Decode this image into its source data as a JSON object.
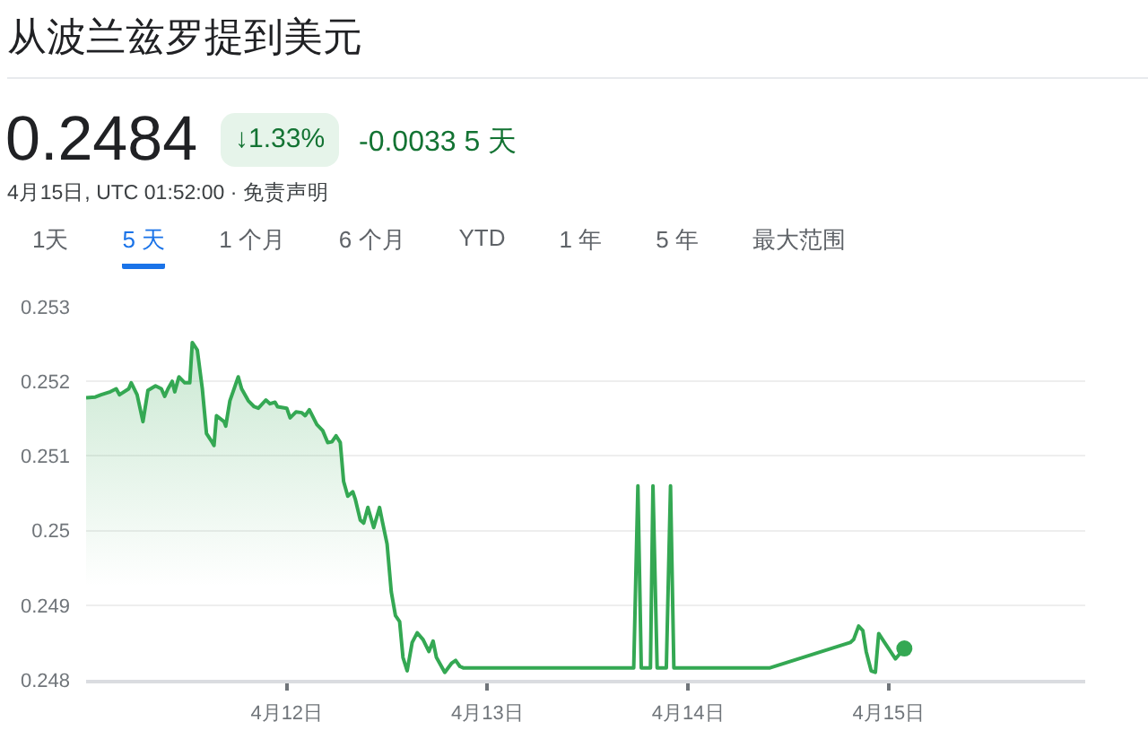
{
  "chart_data": {
    "type": "area",
    "title": "从波兰兹罗提到美元",
    "subtitle": "4月15日, UTC 01:52:00 · 免责声明",
    "annotations": [
      "0.2484",
      "↓1.33%",
      "-0.0033 5 天",
      "1天",
      "5 天",
      "1 个月",
      "6 个月",
      "YTD",
      "1 年",
      "5 年",
      "最大范围"
    ],
    "series": [
      {
        "color": "#34a853",
        "x": [
          "--04-11T00:00",
          "--04-11T01:06",
          "--04-11T01:48",
          "--04-11T02:54",
          "--04-11T03:36",
          "--04-11T04:00",
          "--04-11T05:06",
          "--04-11T05:24",
          "--04-11T06:06",
          "--04-11T06:48",
          "--04-11T07:24",
          "--04-11T08:18",
          "--04-11T09:00",
          "--04-11T09:24",
          "--04-11T09:48",
          "--04-11T10:18",
          "--04-11T10:36",
          "--04-11T11:06",
          "--04-11T11:48",
          "--04-11T12:24",
          "--04-11T12:42",
          "--04-11T13:18",
          "--04-11T13:54",
          "--04-11T14:24",
          "--04-11T15:06",
          "--04-11T15:18",
          "--04-11T15:36",
          "--04-11T16:30",
          "--04-11T16:42",
          "--04-11T17:12",
          "--04-11T18:12",
          "--04-11T18:36",
          "--04-11T19:24",
          "--04-11T20:06",
          "--04-11T20:36",
          "--04-11T21:30",
          "--04-11T22:00",
          "--04-11T22:36",
          "--04-11T22:54",
          "--04-12T00:00",
          "--04-12T00:24",
          "--04-12T01:06",
          "--04-12T01:48",
          "--04-12T02:12",
          "--04-12T02:42",
          "--04-12T03:36",
          "--04-12T04:18",
          "--04-12T04:54",
          "--04-12T05:24",
          "--04-12T05:54",
          "--04-12T06:24",
          "--04-12T06:48",
          "--04-12T07:18",
          "--04-12T07:54",
          "--04-12T08:12",
          "--04-12T08:48",
          "--04-12T09:12",
          "--04-12T09:42",
          "--04-12T10:24",
          "--04-12T11:06",
          "--04-12T11:24",
          "--04-12T12:00",
          "--04-12T12:30",
          "--04-12T13:00",
          "--04-12T13:30",
          "--04-12T13:54",
          "--04-12T14:24",
          "--04-12T15:00",
          "--04-12T15:36",
          "--04-12T16:18",
          "--04-12T17:00",
          "--04-12T17:30",
          "--04-12T17:54",
          "--04-12T18:54",
          "--04-12T19:42",
          "--04-12T20:12",
          "--04-12T20:42",
          "--04-12T21:06",
          "--04-13T17:30",
          "--04-13T18:00",
          "--04-13T18:24",
          "--04-13T19:30",
          "--04-13T19:48",
          "--04-13T20:18",
          "--04-13T21:24",
          "--04-13T21:54",
          "--04-13T22:18",
          "--04-14T09:48",
          "--04-14T19:24",
          "--04-14T19:48",
          "--04-14T20:24",
          "--04-14T20:54",
          "--04-14T21:18",
          "--04-14T21:54",
          "--04-14T22:24",
          "--04-14T22:48",
          "--04-14T23:30",
          "--04-15T00:48",
          "--04-15T01:52"
        ],
        "values": [
          0.25178,
          0.25179,
          0.25182,
          0.25186,
          0.2519,
          0.25182,
          0.2519,
          0.25198,
          0.25182,
          0.25146,
          0.25188,
          0.25194,
          0.2519,
          0.2518,
          0.2519,
          0.252,
          0.25186,
          0.25206,
          0.25198,
          0.25198,
          0.25252,
          0.25242,
          0.2519,
          0.2513,
          0.25118,
          0.25114,
          0.25154,
          0.25146,
          0.2514,
          0.25174,
          0.25206,
          0.2519,
          0.25174,
          0.25166,
          0.25164,
          0.25175,
          0.2517,
          0.25172,
          0.25166,
          0.25164,
          0.25151,
          0.25159,
          0.25158,
          0.25154,
          0.25162,
          0.25142,
          0.25134,
          0.25118,
          0.25119,
          0.25127,
          0.25118,
          0.25066,
          0.25046,
          0.25052,
          0.25042,
          0.25014,
          0.2501,
          0.25031,
          0.25004,
          0.25031,
          0.25014,
          0.24982,
          0.24918,
          0.24886,
          0.24878,
          0.2483,
          0.24812,
          0.2485,
          0.24863,
          0.24854,
          0.24838,
          0.24852,
          0.2483,
          0.2481,
          0.24822,
          0.24826,
          0.24818,
          0.24816,
          0.24816,
          0.2506,
          0.24816,
          0.24816,
          0.2506,
          0.24816,
          0.24816,
          0.2506,
          0.24816,
          0.24816,
          0.2485,
          0.24854,
          0.24872,
          0.24866,
          0.24838,
          0.24812,
          0.2481,
          0.24862,
          0.2485,
          0.24828,
          0.24842
        ]
      },
      {
        "type": "scatter",
        "marker": "circle",
        "color": "#34a853",
        "x": [
          "--04-15T01:52"
        ],
        "values": [
          0.24842
        ]
      }
    ],
    "xlim": [
      "--04-11T00:00",
      "--04-15T23:30"
    ],
    "xticks": [
      {
        "value": "--04-12",
        "label": "4月12日"
      },
      {
        "value": "--04-13",
        "label": "4月13日"
      },
      {
        "value": "--04-14",
        "label": "4月14日"
      },
      {
        "value": "--04-15",
        "label": "4月15日"
      }
    ],
    "ylim": [
      0.248,
      0.253
    ],
    "yticks": [
      0.248,
      0.249,
      0.25,
      0.251,
      0.252,
      0.253
    ],
    "grid": "y"
  }
}
